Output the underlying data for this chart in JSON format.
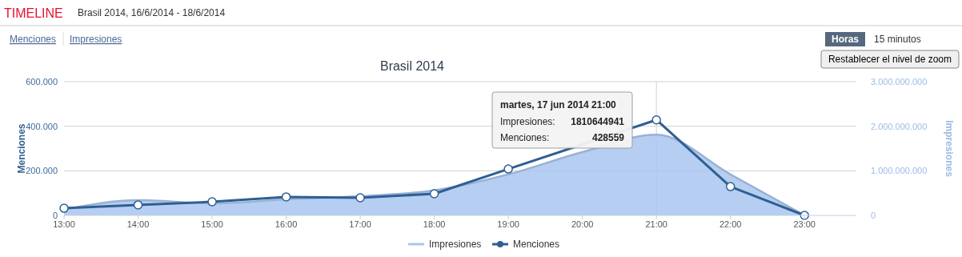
{
  "chart_data": {
    "type": "line",
    "title": "Brasil 2014",
    "ylabel": "Menciones",
    "y2label": "Impresiones",
    "annotations": [
      "TIMELINE",
      "Brasil 2014, 16/6/2014 - 18/6/2014",
      "Menciones",
      "Impresiones",
      "Horas",
      "15 minutos",
      "Restablecer el nivel de zoom",
      "martes, 17 jun 2014 21:00",
      "Impresiones:",
      "1810644941",
      "Menciones:",
      "428559"
    ],
    "x": [
      13,
      14,
      15,
      16,
      17,
      18,
      19,
      20,
      21,
      22,
      23
    ],
    "xlim": [
      13,
      23.7
    ],
    "xticks": [
      {
        "value": 13,
        "label": "13:00"
      },
      {
        "value": 14,
        "label": "14:00"
      },
      {
        "value": 15,
        "label": "15:00"
      },
      {
        "value": 16,
        "label": "16:00"
      },
      {
        "value": 17,
        "label": "17:00"
      },
      {
        "value": 18,
        "label": "18:00"
      },
      {
        "value": 19,
        "label": "19:00"
      },
      {
        "value": 20,
        "label": "20:00"
      },
      {
        "value": 21,
        "label": "21:00"
      },
      {
        "value": 22,
        "label": "22:00"
      },
      {
        "value": 23,
        "label": "23:00"
      }
    ],
    "ylim": [
      0,
      600000
    ],
    "yticks": [
      0,
      {
        "value": 200000,
        "label": "200.000"
      },
      {
        "value": 400000,
        "label": "400.000"
      },
      {
        "value": 600000,
        "label": "600.000"
      }
    ],
    "y2lim": [
      0,
      3000000000
    ],
    "y2ticks": [
      0,
      {
        "value": 1000000000,
        "label": "1.000.000.000"
      },
      {
        "value": 2000000000,
        "label": "2.000.000.000"
      },
      {
        "value": 3000000000,
        "label": "3.000.000.000"
      }
    ],
    "series": [
      {
        "name": "Impresiones",
        "type": "area",
        "axis": "y2",
        "color": "#a9c6ee",
        "marker": "none",
        "values": [
          130000000,
          340000000,
          270000000,
          360000000,
          430000000,
          560000000,
          920000000,
          1420000000,
          1810644941,
          920000000,
          0
        ]
      },
      {
        "name": "Menciones",
        "color": "#2f5f93",
        "marker": "circle",
        "values": [
          32000,
          47000,
          61000,
          83000,
          79000,
          97000,
          208000,
          null,
          428559,
          129000,
          0
        ]
      }
    ],
    "ref_lines": [
      {
        "axis": "x",
        "value": 21,
        "color": "#c8d4e4"
      }
    ],
    "grid": "y",
    "legend": "bottom",
    "line_style": "solid"
  }
}
